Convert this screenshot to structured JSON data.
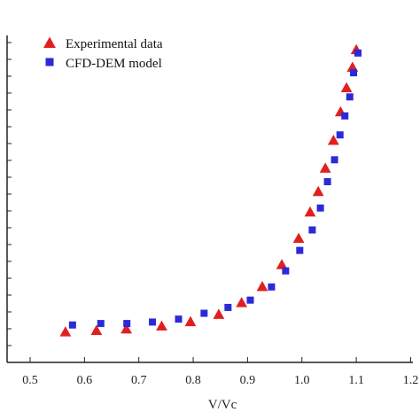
{
  "chart_data": {
    "type": "scatter",
    "xlabel": "V/Vc",
    "ylabel": "",
    "xlim": [
      0.5,
      1.2
    ],
    "x_ticks": [
      "0.5",
      "0.6",
      "0.7",
      "0.8",
      "0.9",
      "1.0",
      "1.1",
      "1.2"
    ],
    "y_tick_count": 20,
    "grid": false,
    "legend_position": "top-left",
    "series": [
      {
        "name": "Experimental data",
        "marker": "triangle",
        "color": "#e02020",
        "x": [
          0.565,
          0.622,
          0.677,
          0.742,
          0.795,
          0.847,
          0.889,
          0.927,
          0.963,
          0.994,
          1.015,
          1.03,
          1.043,
          1.058,
          1.071,
          1.082,
          1.093,
          1.1
        ],
        "y": [
          0.4,
          0.42,
          0.44,
          0.48,
          0.54,
          0.64,
          0.8,
          1.02,
          1.32,
          1.68,
          2.04,
          2.32,
          2.64,
          3.02,
          3.41,
          3.74,
          4.02,
          4.26
        ]
      },
      {
        "name": "CFD-DEM model",
        "marker": "square",
        "color": "#2a2ad8",
        "x": [
          0.578,
          0.63,
          0.678,
          0.725,
          0.773,
          0.82,
          0.864,
          0.905,
          0.944,
          0.97,
          0.996,
          1.019,
          1.034,
          1.047,
          1.06,
          1.07,
          1.079,
          1.088,
          1.095,
          1.103
        ],
        "y": [
          0.5,
          0.52,
          0.52,
          0.54,
          0.58,
          0.66,
          0.74,
          0.84,
          1.02,
          1.24,
          1.52,
          1.8,
          2.1,
          2.46,
          2.76,
          3.1,
          3.36,
          3.62,
          3.95,
          4.22
        ]
      }
    ]
  }
}
